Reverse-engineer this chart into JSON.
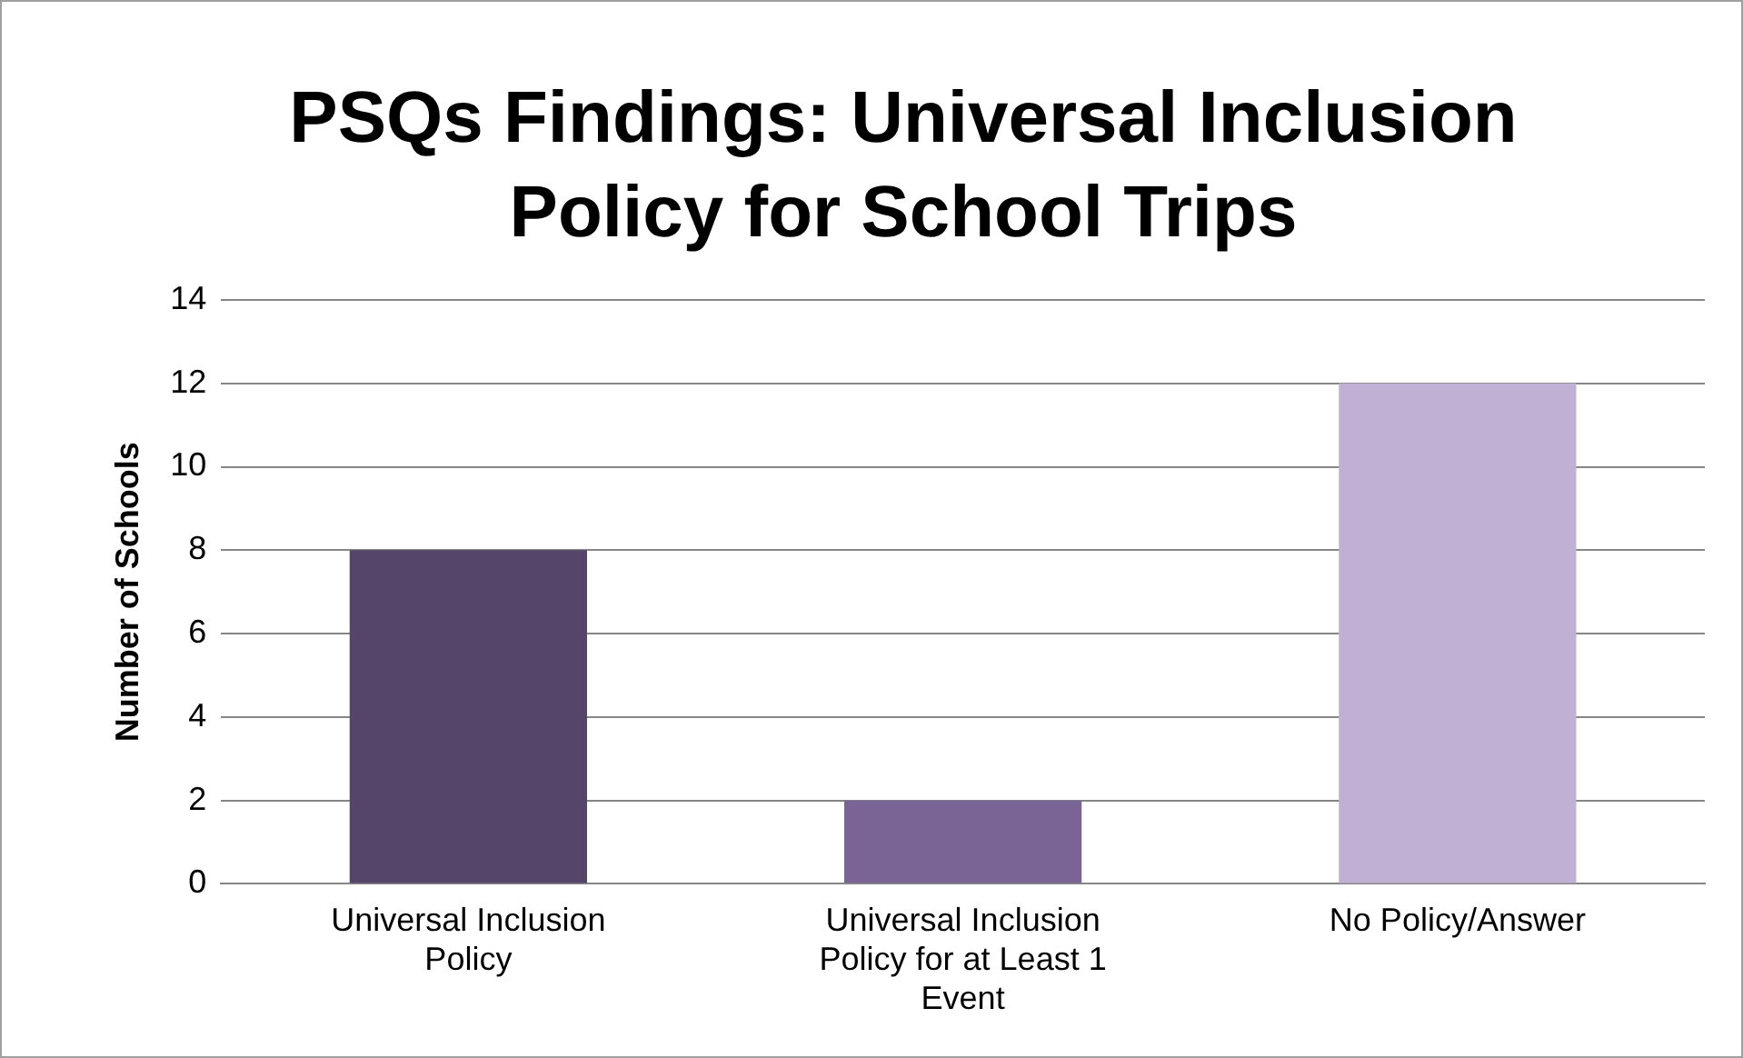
{
  "chart_data": {
    "type": "bar",
    "title": "PSQs Findings: Universal Inclusion Policy for School Trips",
    "ylabel": "Number of Schools",
    "categories": [
      "Universal Inclusion Policy",
      "Universal Inclusion Policy for at Least 1 Event",
      "No Policy/Answer"
    ],
    "values": [
      8,
      2,
      12
    ],
    "colors": [
      "#56456a",
      "#7a6496",
      "#c0b0d4"
    ],
    "ylim": [
      0,
      14
    ],
    "yticks": [
      0,
      2,
      4,
      6,
      8,
      10,
      12,
      14
    ],
    "grid": "y",
    "legend": false
  }
}
